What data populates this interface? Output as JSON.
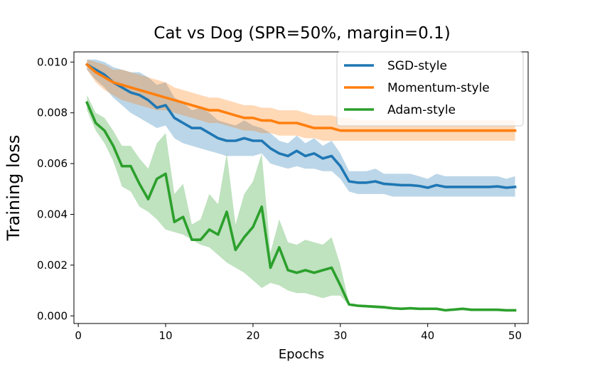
{
  "chart_data": {
    "type": "line",
    "title": "Cat vs Dog (SPR=50%, margin=0.1)",
    "xlabel": "Epochs",
    "ylabel": "Training loss",
    "xlim": [
      -0.5,
      51.5
    ],
    "ylim": [
      -0.0003,
      0.0104
    ],
    "xticks": [
      0,
      10,
      20,
      30,
      40,
      50
    ],
    "yticks": [
      0.0,
      0.002,
      0.004,
      0.006,
      0.008,
      0.01
    ],
    "ytick_labels": [
      "0.000",
      "0.002",
      "0.004",
      "0.006",
      "0.008",
      "0.010"
    ],
    "grid": false,
    "legend_position": "top-right",
    "x": [
      1,
      2,
      3,
      4,
      5,
      6,
      7,
      8,
      9,
      10,
      11,
      12,
      13,
      14,
      15,
      16,
      17,
      18,
      19,
      20,
      21,
      22,
      23,
      24,
      25,
      26,
      27,
      28,
      29,
      30,
      31,
      32,
      33,
      34,
      35,
      36,
      37,
      38,
      39,
      40,
      41,
      42,
      43,
      44,
      45,
      46,
      47,
      48,
      49,
      50
    ],
    "series": [
      {
        "name": "SGD-style",
        "color": "#1f77b4",
        "values": [
          0.0099,
          0.0097,
          0.0095,
          0.0092,
          0.009,
          0.0088,
          0.0087,
          0.0085,
          0.0082,
          0.0083,
          0.0078,
          0.0076,
          0.0074,
          0.0074,
          0.0072,
          0.007,
          0.0069,
          0.0069,
          0.007,
          0.0069,
          0.0069,
          0.0066,
          0.0064,
          0.0063,
          0.0065,
          0.0063,
          0.0064,
          0.0062,
          0.0063,
          0.0059,
          0.0053,
          0.00525,
          0.00525,
          0.0053,
          0.0052,
          0.00518,
          0.00515,
          0.00515,
          0.00512,
          0.00505,
          0.00515,
          0.00508,
          0.00508,
          0.00508,
          0.00508,
          0.00508,
          0.00508,
          0.0051,
          0.00505,
          0.00508
        ],
        "lower": [
          0.0097,
          0.0093,
          0.009,
          0.0086,
          0.0083,
          0.008,
          0.0078,
          0.0076,
          0.0074,
          0.0075,
          0.007,
          0.0068,
          0.0067,
          0.0066,
          0.0065,
          0.0064,
          0.0063,
          0.0063,
          0.0063,
          0.0063,
          0.0064,
          0.006,
          0.0059,
          0.0058,
          0.0059,
          0.0058,
          0.0058,
          0.0057,
          0.0057,
          0.0054,
          0.0049,
          0.0048,
          0.0048,
          0.0048,
          0.0048,
          0.0047,
          0.0047,
          0.0047,
          0.0047,
          0.0047,
          0.0047,
          0.0047,
          0.0047,
          0.0047,
          0.0047,
          0.0047,
          0.0047,
          0.0047,
          0.0047,
          0.0047
        ],
        "upper": [
          0.0101,
          0.0101,
          0.01,
          0.0098,
          0.0097,
          0.0096,
          0.0096,
          0.0094,
          0.0091,
          0.0092,
          0.0086,
          0.0084,
          0.0081,
          0.0082,
          0.008,
          0.0077,
          0.0076,
          0.0075,
          0.0077,
          0.0075,
          0.0074,
          0.0072,
          0.0069,
          0.0068,
          0.0071,
          0.0068,
          0.007,
          0.0067,
          0.0069,
          0.0064,
          0.0057,
          0.0057,
          0.0057,
          0.0058,
          0.0056,
          0.0056,
          0.0056,
          0.0056,
          0.0055,
          0.0054,
          0.0056,
          0.0055,
          0.0055,
          0.0055,
          0.0055,
          0.0055,
          0.0055,
          0.0055,
          0.0054,
          0.0055
        ]
      },
      {
        "name": "Momentum-style",
        "color": "#ff7f0e",
        "values": [
          0.0099,
          0.0096,
          0.0094,
          0.0092,
          0.0091,
          0.009,
          0.0089,
          0.0088,
          0.0087,
          0.0086,
          0.0085,
          0.0084,
          0.0083,
          0.0082,
          0.0081,
          0.0081,
          0.008,
          0.0079,
          0.0078,
          0.0078,
          0.0077,
          0.0077,
          0.0076,
          0.0076,
          0.0076,
          0.0075,
          0.0074,
          0.0074,
          0.0074,
          0.0073,
          0.0073,
          0.0073,
          0.0073,
          0.0073,
          0.0073,
          0.0073,
          0.0073,
          0.0073,
          0.0073,
          0.0073,
          0.0073,
          0.0073,
          0.0073,
          0.0073,
          0.0073,
          0.0073,
          0.0073,
          0.0073,
          0.0073,
          0.0073
        ],
        "lower": [
          0.0097,
          0.0092,
          0.0089,
          0.0087,
          0.0085,
          0.0084,
          0.0083,
          0.0082,
          0.0081,
          0.0081,
          0.008,
          0.0079,
          0.0078,
          0.0077,
          0.0076,
          0.0076,
          0.0075,
          0.0074,
          0.0073,
          0.0073,
          0.0072,
          0.0072,
          0.0071,
          0.0071,
          0.0071,
          0.007,
          0.007,
          0.0069,
          0.0069,
          0.0069,
          0.0069,
          0.0069,
          0.0069,
          0.0069,
          0.0069,
          0.0069,
          0.0069,
          0.0069,
          0.0069,
          0.0069,
          0.0069,
          0.0069,
          0.0069,
          0.0069,
          0.0069,
          0.0069,
          0.0069,
          0.0069,
          0.0069,
          0.0069
        ],
        "upper": [
          0.0101,
          0.01,
          0.0099,
          0.0097,
          0.0097,
          0.0096,
          0.0095,
          0.0094,
          0.0093,
          0.0092,
          0.009,
          0.0089,
          0.0088,
          0.0087,
          0.0086,
          0.0086,
          0.0085,
          0.0084,
          0.0083,
          0.0083,
          0.0082,
          0.0082,
          0.0081,
          0.0081,
          0.0081,
          0.008,
          0.0079,
          0.0079,
          0.0079,
          0.0078,
          0.0078,
          0.0077,
          0.0077,
          0.0077,
          0.0077,
          0.0077,
          0.0077,
          0.0077,
          0.0077,
          0.0077,
          0.0077,
          0.0077,
          0.0077,
          0.0077,
          0.0077,
          0.0077,
          0.0077,
          0.0077,
          0.0077,
          0.0077
        ]
      },
      {
        "name": "Adam-style",
        "color": "#2ca02c",
        "values": [
          0.0084,
          0.0076,
          0.0073,
          0.0067,
          0.0059,
          0.0059,
          0.0052,
          0.0046,
          0.0054,
          0.0056,
          0.0037,
          0.0039,
          0.003,
          0.003,
          0.0034,
          0.0032,
          0.0041,
          0.0026,
          0.0031,
          0.0035,
          0.0043,
          0.0019,
          0.0027,
          0.0018,
          0.0017,
          0.0018,
          0.0017,
          0.0018,
          0.0019,
          0.0012,
          0.00045,
          0.0004,
          0.00038,
          0.00036,
          0.00034,
          0.0003,
          0.00028,
          0.0003,
          0.00028,
          0.00028,
          0.00028,
          0.00022,
          0.00025,
          0.00028,
          0.00024,
          0.00024,
          0.00024,
          0.00024,
          0.00022,
          0.00022
        ],
        "lower": [
          0.0081,
          0.0073,
          0.0068,
          0.0061,
          0.0051,
          0.0049,
          0.0043,
          0.0041,
          0.0038,
          0.0034,
          0.0033,
          0.0032,
          0.003,
          0.0028,
          0.0027,
          0.0024,
          0.0021,
          0.0019,
          0.0017,
          0.0014,
          0.0011,
          0.0013,
          0.0012,
          0.001,
          0.0009,
          0.0009,
          0.0008,
          0.0007,
          0.0008,
          0.0008,
          0.0004,
          0.00035,
          0.00033,
          0.0003,
          0.00029,
          0.00026,
          0.00024,
          0.00025,
          0.00024,
          0.00024,
          0.00024,
          0.0002,
          0.00021,
          0.00023,
          0.00021,
          0.00021,
          0.00021,
          0.00021,
          0.0002,
          0.0002
        ],
        "upper": [
          0.0087,
          0.008,
          0.0078,
          0.0073,
          0.0067,
          0.0067,
          0.0062,
          0.0058,
          0.0068,
          0.0072,
          0.0048,
          0.0052,
          0.0036,
          0.0038,
          0.0048,
          0.0044,
          0.0064,
          0.0036,
          0.0048,
          0.0053,
          0.0064,
          0.0025,
          0.0038,
          0.0029,
          0.0028,
          0.003,
          0.0029,
          0.0028,
          0.0031,
          0.002,
          0.0005,
          0.00045,
          0.00043,
          0.00042,
          0.0004,
          0.00034,
          0.00032,
          0.00035,
          0.00033,
          0.00033,
          0.00033,
          0.00025,
          0.0003,
          0.00033,
          0.00028,
          0.00028,
          0.00028,
          0.00028,
          0.00025,
          0.00025
        ]
      }
    ]
  }
}
